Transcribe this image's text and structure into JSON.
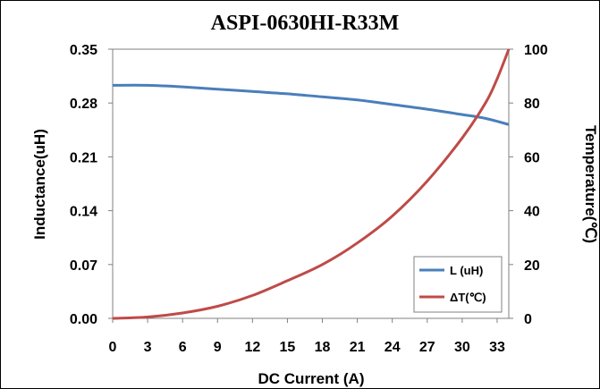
{
  "chart_data": {
    "type": "line",
    "title": "ASPI-0630HI-R33M",
    "xlabel": "DC Current (A)",
    "ylabel_left": "Inductance(uH)",
    "ylabel_right": "Temperature(℃)",
    "x_ticks": [
      "0",
      "3",
      "6",
      "9",
      "12",
      "15",
      "18",
      "21",
      "24",
      "27",
      "30",
      "33"
    ],
    "y_left_ticks": [
      "0.00",
      "0.07",
      "0.14",
      "0.21",
      "0.28",
      "0.35"
    ],
    "y_right_ticks": [
      "0",
      "20",
      "40",
      "60",
      "80",
      "100"
    ],
    "xlim": [
      0,
      34
    ],
    "ylim_left": [
      0,
      0.35
    ],
    "ylim_right": [
      0,
      100
    ],
    "grid": "none",
    "legend_placement": "bottom-right",
    "series": [
      {
        "name": "L (uH)",
        "axis": "left",
        "color": "#4a7ebb",
        "x": [
          0,
          3,
          6,
          9,
          12,
          15,
          18,
          21,
          24,
          27,
          30,
          32,
          34
        ],
        "y": [
          0.303,
          0.303,
          0.301,
          0.298,
          0.295,
          0.292,
          0.288,
          0.284,
          0.278,
          0.272,
          0.265,
          0.26,
          0.252
        ]
      },
      {
        "name": "ΔT(℃)",
        "axis": "right",
        "color": "#be4b48",
        "x": [
          0,
          3,
          6,
          9,
          12,
          15,
          18,
          21,
          24,
          27,
          30,
          32,
          33,
          34
        ],
        "y": [
          0,
          0.5,
          2,
          4.5,
          8.5,
          14,
          20,
          28,
          38,
          51,
          67,
          80,
          89,
          100
        ]
      }
    ]
  }
}
